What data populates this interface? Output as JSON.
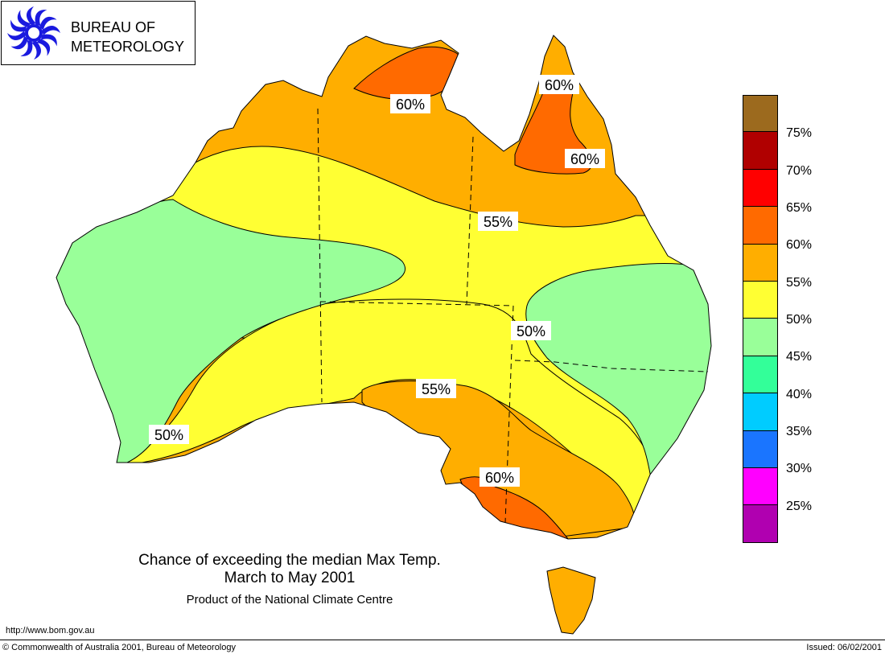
{
  "logo": {
    "line1": "BUREAU OF",
    "line2": "METEOROLOGY",
    "icon": "bom-spiral-logo-icon"
  },
  "colors": {
    "c75": "#9c6a1e",
    "c70": "#b00000",
    "c65": "#ff0000",
    "c60": "#ff6a00",
    "c55": "#ffae00",
    "c50": "#ffff33",
    "c45": "#99ff99",
    "c40": "#33ff99",
    "c35": "#00ccff",
    "c30": "#1a75ff",
    "c25": "#ff00ff",
    "c20": "#b000b0",
    "line": "#000000"
  },
  "legend": {
    "labels": [
      "75%",
      "70%",
      "65%",
      "60%",
      "55%",
      "50%",
      "45%",
      "40%",
      "35%",
      "30%",
      "25%"
    ]
  },
  "contour_labels": [
    "60%",
    "60%",
    "60%",
    "55%",
    "50%",
    "55%",
    "50%",
    "60%"
  ],
  "caption": {
    "title": "Chance of exceeding the median Max Temp.",
    "period": "March to May 2001",
    "product": "Product of the National Climate Centre"
  },
  "footer": {
    "url": "http://www.bom.gov.au",
    "copyright": "© Commonwealth of Australia 2001, Bureau of Meteorology",
    "issued": "Issued: 06/02/2001"
  }
}
